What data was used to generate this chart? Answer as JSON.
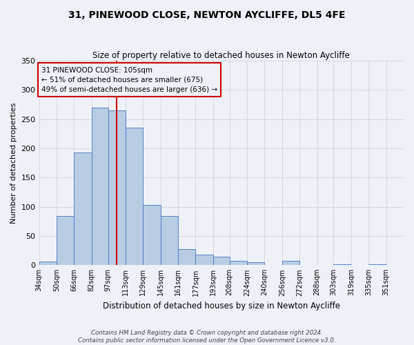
{
  "title": "31, PINEWOOD CLOSE, NEWTON AYCLIFFE, DL5 4FE",
  "subtitle": "Size of property relative to detached houses in Newton Aycliffe",
  "xlabel": "Distribution of detached houses by size in Newton Aycliffe",
  "ylabel": "Number of detached properties",
  "bin_labels": [
    "34sqm",
    "50sqm",
    "66sqm",
    "82sqm",
    "97sqm",
    "113sqm",
    "129sqm",
    "145sqm",
    "161sqm",
    "177sqm",
    "193sqm",
    "208sqm",
    "224sqm",
    "240sqm",
    "256sqm",
    "272sqm",
    "288sqm",
    "303sqm",
    "319sqm",
    "335sqm",
    "351sqm"
  ],
  "bin_edges": [
    34,
    50,
    66,
    82,
    97,
    113,
    129,
    145,
    161,
    177,
    193,
    208,
    224,
    240,
    256,
    272,
    288,
    303,
    319,
    335,
    351
  ],
  "bar_heights": [
    6,
    84,
    193,
    270,
    265,
    236,
    103,
    84,
    28,
    18,
    14,
    7,
    5,
    0,
    7,
    0,
    0,
    2,
    0,
    1
  ],
  "bar_color": "#b8cce4",
  "bar_edge_color": "#4472c4",
  "vline_x": 105,
  "vline_color": "#cc0000",
  "ylim": [
    0,
    350
  ],
  "annotation_text": "31 PINEWOOD CLOSE: 105sqm\n← 51% of detached houses are smaller (675)\n49% of semi-detached houses are larger (636) →",
  "annotation_box_edgecolor": "#cc0000",
  "footnote1": "Contains HM Land Registry data © Crown copyright and database right 2024.",
  "footnote2": "Contains public sector information licensed under the Open Government Licence v3.0.",
  "background_color": "#eef2f8"
}
